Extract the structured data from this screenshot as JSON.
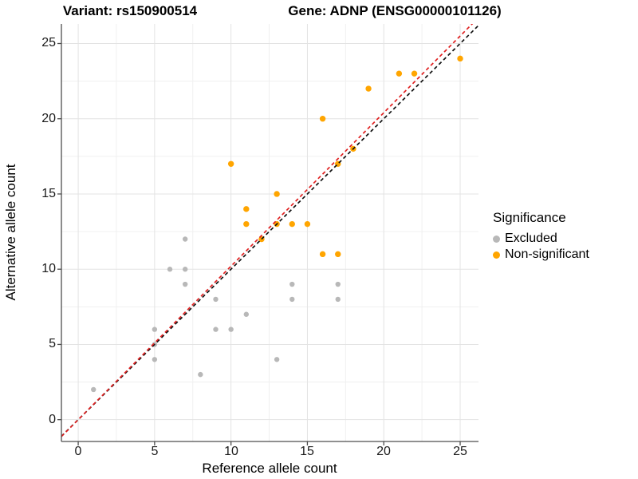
{
  "titles": {
    "variant": "Variant: rs150900514",
    "gene": "Gene: ADNP (ENSG00000101126)"
  },
  "axes": {
    "x_label": "Reference allele count",
    "y_label": "Alternative allele count",
    "x_ticks": [
      0,
      5,
      10,
      15,
      20,
      25
    ],
    "y_ticks": [
      0,
      5,
      10,
      15,
      20,
      25
    ]
  },
  "legend": {
    "title": "Significance",
    "items": [
      {
        "label": "Excluded",
        "color": "#b8b8b8"
      },
      {
        "label": "Non-significant",
        "color": "#ffa500"
      }
    ]
  },
  "chart_data": {
    "type": "scatter",
    "title": "Variant: rs150900514 / Gene: ADNP (ENSG00000101126)",
    "xlabel": "Reference allele count",
    "ylabel": "Alternative allele count",
    "xlim": [
      -1.1,
      26.2
    ],
    "ylim": [
      -1.45,
      26.3
    ],
    "grid": "major-and-minor",
    "legend_position": "right",
    "series": [
      {
        "name": "Excluded",
        "color": "#b8b8b8",
        "points": [
          [
            1,
            2
          ],
          [
            5,
            4
          ],
          [
            5,
            5
          ],
          [
            5,
            6
          ],
          [
            6,
            10
          ],
          [
            7,
            9
          ],
          [
            7,
            10
          ],
          [
            7,
            12
          ],
          [
            8,
            3
          ],
          [
            9,
            6
          ],
          [
            9,
            8
          ],
          [
            10,
            6
          ],
          [
            11,
            7
          ],
          [
            13,
            4
          ],
          [
            14,
            8
          ],
          [
            14,
            9
          ],
          [
            17,
            8
          ],
          [
            17,
            9
          ]
        ]
      },
      {
        "name": "Non-significant",
        "color": "#ffa500",
        "points": [
          [
            10,
            17
          ],
          [
            11,
            13
          ],
          [
            11,
            14
          ],
          [
            12,
            12
          ],
          [
            13,
            13
          ],
          [
            13,
            15
          ],
          [
            14,
            13
          ],
          [
            15,
            13
          ],
          [
            16,
            11
          ],
          [
            16,
            20
          ],
          [
            17,
            11
          ],
          [
            17,
            17
          ],
          [
            18,
            18
          ],
          [
            19,
            22
          ],
          [
            21,
            23
          ],
          [
            22,
            23
          ],
          [
            25,
            24
          ]
        ]
      }
    ],
    "lines": [
      {
        "name": "identity-line",
        "slope": 1.0,
        "intercept": 0,
        "color": "#111111",
        "style": "dashed"
      },
      {
        "name": "fit-line",
        "slope": 1.02,
        "intercept": 0,
        "color": "#e02020",
        "style": "dashed"
      }
    ]
  }
}
